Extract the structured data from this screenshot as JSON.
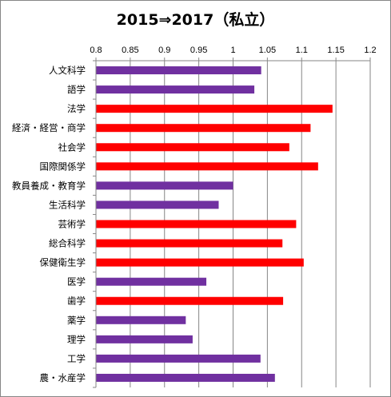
{
  "chart_data": {
    "type": "bar",
    "orientation": "horizontal",
    "title": "2015⇒2017（私立）",
    "xlabel": "",
    "ylabel": "",
    "xlim": [
      0.8,
      1.2
    ],
    "x_ticks": [
      "0.8",
      "0.85",
      "0.9",
      "0.95",
      "1",
      "1.05",
      "1.1",
      "1.15",
      "1.2"
    ],
    "x_axis_position": "top",
    "grid": "vertical",
    "legend": "none",
    "categories": [
      "人文科学",
      "語学",
      "法学",
      "経済・経営・商学",
      "社会学",
      "国際関係学",
      "教員養成・教育学",
      "生活科学",
      "芸術学",
      "総合科学",
      "保健衛生学",
      "医学",
      "歯学",
      "薬学",
      "理学",
      "工学",
      "農・水産学"
    ],
    "values": [
      1.041,
      1.031,
      1.145,
      1.113,
      1.082,
      1.124,
      1.0,
      0.979,
      1.092,
      1.072,
      1.103,
      0.961,
      1.073,
      0.931,
      0.941,
      1.04,
      1.061
    ],
    "bar_colors": [
      "#7030A0",
      "#7030A0",
      "#FF0000",
      "#FF0000",
      "#FF0000",
      "#FF0000",
      "#7030A0",
      "#7030A0",
      "#FF0000",
      "#FF0000",
      "#FF0000",
      "#7030A0",
      "#FF0000",
      "#7030A0",
      "#7030A0",
      "#7030A0",
      "#7030A0"
    ]
  },
  "colors": {
    "increase": "#FF0000",
    "decrease": "#7030A0",
    "gridline": "#868686",
    "axis": "#868686"
  }
}
